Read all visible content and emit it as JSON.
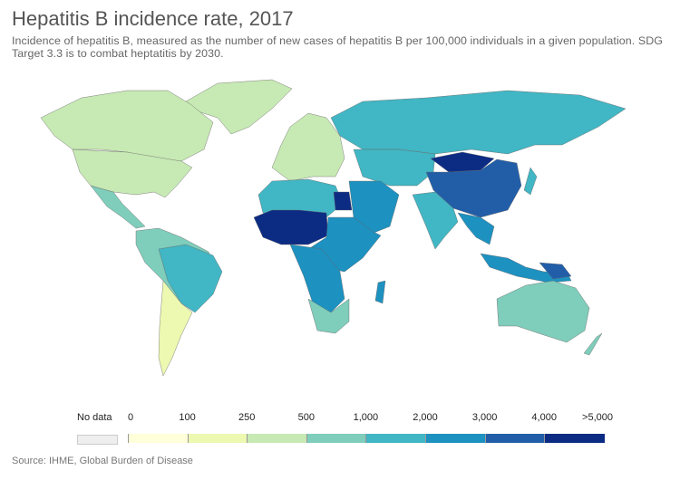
{
  "title": "Hepatitis B incidence rate, 2017",
  "subtitle": "Incidence of hepatitis B, measured as the number of new cases of hepatitis B per 100,000 individuals in a given population. SDG Target 3.3 is to combat heptatitis by 2030.",
  "source": "Source: IHME, Global Burden of Disease",
  "legend": {
    "no_data_label": "No data",
    "no_data_color": "#eeeeee",
    "ticks": [
      "0",
      "100",
      "250",
      "500",
      "1,000",
      "2,000",
      "3,000",
      "4,000",
      ">5,000"
    ],
    "colors": [
      "#ffffd9",
      "#edf8b1",
      "#c7e9b4",
      "#7fcdbb",
      "#41b6c4",
      "#1d91c0",
      "#225ea8",
      "#0c2c84"
    ]
  }
}
